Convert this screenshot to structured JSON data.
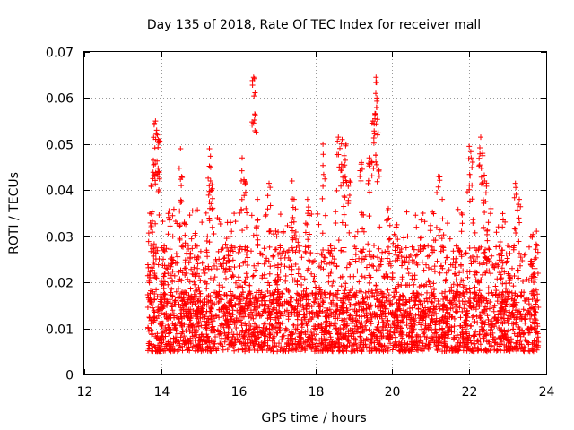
{
  "chart_data": {
    "type": "scatter",
    "title": "Day 135 of 2018, Rate Of TEC Index for receiver mall",
    "xlabel": "GPS time / hours",
    "ylabel": "ROTI / TECUs",
    "xlim": [
      12,
      24
    ],
    "ylim": [
      0,
      0.07
    ],
    "xticks": [
      12,
      14,
      16,
      18,
      20,
      22,
      24
    ],
    "yticks": [
      0,
      0.01,
      0.02,
      0.03,
      0.04,
      0.05,
      0.06,
      0.07
    ],
    "xtick_labels": [
      "12",
      "14",
      "16",
      "18",
      "20",
      "22",
      "24"
    ],
    "ytick_labels": [
      "0",
      "0.01",
      "0.02",
      "0.03",
      "0.04",
      "0.05",
      "0.06",
      "0.07"
    ],
    "grid": true,
    "marker": "plus",
    "color": "#ff0000",
    "time_range": [
      13.65,
      23.8
    ],
    "series": [
      {
        "name": "ROTI",
        "x": [
          13.7,
          13.73,
          13.78,
          13.82,
          13.85,
          13.88,
          13.9,
          13.92,
          14.05,
          14.2,
          14.3,
          14.5,
          14.52,
          14.6,
          14.7,
          15.25,
          15.28,
          15.3,
          15.2,
          15.5,
          15.8,
          16.1,
          16.15,
          16.2,
          16.4,
          16.42,
          16.5,
          16.8,
          17.0,
          17.4,
          17.45,
          17.6,
          17.8,
          18.2,
          18.4,
          18.6,
          18.7,
          18.75,
          18.8,
          18.9,
          19.2,
          19.4,
          19.5,
          19.55,
          19.58,
          19.6,
          19.62,
          19.9,
          20.1,
          20.4,
          20.8,
          21.2,
          21.3,
          21.8,
          22.0,
          22.05,
          22.3,
          22.35,
          22.4,
          22.5,
          23.0,
          23.2,
          23.3,
          23.6,
          23.7
        ],
        "y": [
          0.035,
          0.028,
          0.0425,
          0.0545,
          0.055,
          0.053,
          0.052,
          0.051,
          0.025,
          0.0355,
          0.03,
          0.049,
          0.041,
          0.033,
          0.028,
          0.049,
          0.042,
          0.04,
          0.03,
          0.025,
          0.033,
          0.047,
          0.042,
          0.036,
          0.0645,
          0.0642,
          0.038,
          0.0415,
          0.03,
          0.042,
          0.038,
          0.03,
          0.038,
          0.05,
          0.028,
          0.0515,
          0.051,
          0.0475,
          0.05,
          0.042,
          0.046,
          0.047,
          0.055,
          0.0555,
          0.0645,
          0.06,
          0.052,
          0.036,
          0.032,
          0.03,
          0.035,
          0.043,
          0.038,
          0.035,
          0.0495,
          0.047,
          0.0515,
          0.048,
          0.042,
          0.033,
          0.028,
          0.0415,
          0.038,
          0.03,
          0.025
        ],
        "bulk_band": [
          0.003,
          0.02
        ],
        "bulk_count": 3400
      }
    ]
  }
}
